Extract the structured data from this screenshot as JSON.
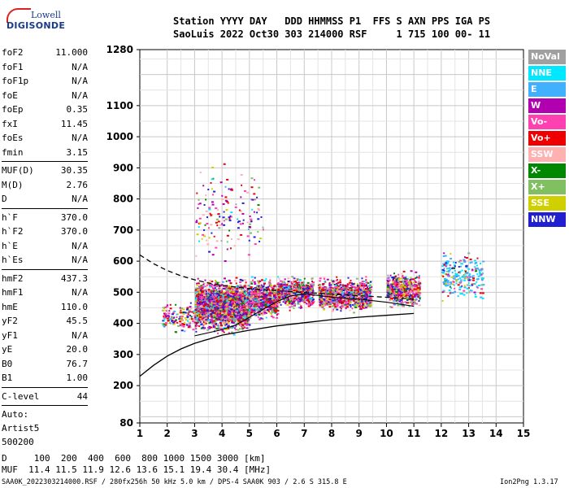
{
  "logo": {
    "line1": "Lowell",
    "line2": "DIGISONDE"
  },
  "header": {
    "line1": "Station YYYY DAY   DDD HHMMSS P1  FFS S AXN PPS IGA PS",
    "line2": "SaoLuis 2022 Oct30 303 214000 RSF     1 715 100 00- 11"
  },
  "params": {
    "group1": [
      {
        "label": "foF2",
        "value": "11.000"
      },
      {
        "label": "foF1",
        "value": "N/A"
      },
      {
        "label": "foF1p",
        "value": "N/A"
      },
      {
        "label": "foE",
        "value": "N/A"
      },
      {
        "label": "foEp",
        "value": "0.35"
      },
      {
        "label": "fxI",
        "value": "11.45"
      },
      {
        "label": "foEs",
        "value": "N/A"
      },
      {
        "label": "fmin",
        "value": "3.15"
      }
    ],
    "group2": [
      {
        "label": "MUF(D)",
        "value": "30.35"
      },
      {
        "label": "M(D)",
        "value": "2.76"
      },
      {
        "label": "D",
        "value": "N/A"
      }
    ],
    "group3": [
      {
        "label": "h`F",
        "value": "370.0"
      },
      {
        "label": "h`F2",
        "value": "370.0"
      },
      {
        "label": "h`E",
        "value": "N/A"
      },
      {
        "label": "h`Es",
        "value": "N/A"
      }
    ],
    "group4": [
      {
        "label": "hmF2",
        "value": "437.3"
      },
      {
        "label": "hmF1",
        "value": "N/A"
      },
      {
        "label": "hmE",
        "value": "110.0"
      },
      {
        "label": "yF2",
        "value": "45.5"
      },
      {
        "label": "yF1",
        "value": "N/A"
      },
      {
        "label": "yE",
        "value": "20.0"
      },
      {
        "label": "B0",
        "value": "76.7"
      },
      {
        "label": "B1",
        "value": "1.00"
      }
    ],
    "clevel": {
      "label": "C-level",
      "value": "44"
    },
    "auto": [
      "Auto:",
      "Artist5",
      "500200"
    ]
  },
  "legend": [
    {
      "label": "NoVal",
      "color": "#a0a0a0"
    },
    {
      "label": "NNE",
      "color": "#00e8ff"
    },
    {
      "label": "E",
      "color": "#40b0ff"
    },
    {
      "label": "W",
      "color": "#b000b0"
    },
    {
      "label": "Vo-",
      "color": "#ff40b0"
    },
    {
      "label": "Vo+",
      "color": "#ee0000"
    },
    {
      "label": "SSW",
      "color": "#ffb0b0"
    },
    {
      "label": "X-",
      "color": "#008800"
    },
    {
      "label": "X+",
      "color": "#80c060"
    },
    {
      "label": "SSE",
      "color": "#d0d000"
    },
    {
      "label": "NNW",
      "color": "#2020d0"
    }
  ],
  "footer": {
    "line1": "D     100  200  400  600  800 1000 1500 3000 [km]",
    "line2": "MUF  11.4 11.5 11.9 12.6 13.6 15.1 19.4 30.4 [MHz]",
    "line3": "SAA0K_2022303214000.RSF / 280fx256h 50 kHz 5.0 km / DPS-4 SAA0K 903 / 2.6 S 315.8 E",
    "version": "Ion2Png 1.3.17"
  },
  "chart_data": {
    "type": "scatter",
    "xlim": [
      1,
      15
    ],
    "ylim": [
      80,
      1280
    ],
    "xticks": [
      "1",
      "2",
      "3",
      "4",
      "5",
      "6",
      "7",
      "8",
      "9",
      "10",
      "11",
      "12",
      "13",
      "14",
      "15"
    ],
    "yticks": [
      "80",
      "200",
      "300",
      "400",
      "500",
      "600",
      "700",
      "800",
      "900",
      "1000",
      "1100",
      "1280"
    ],
    "grid": true,
    "clusters": [
      {
        "x": [
          3.0,
          5.0
        ],
        "y": [
          360,
          560
        ],
        "count": 2400,
        "note": "dense echoes"
      },
      {
        "x": [
          5.0,
          6.0
        ],
        "y": [
          400,
          560
        ],
        "count": 700
      },
      {
        "x": [
          6.0,
          7.3
        ],
        "y": [
          440,
          560
        ],
        "count": 700
      },
      {
        "x": [
          7.5,
          9.4
        ],
        "y": [
          430,
          560
        ],
        "count": 1000
      },
      {
        "x": [
          10.0,
          11.2
        ],
        "y": [
          440,
          580
        ],
        "count": 600
      },
      {
        "x": [
          12.0,
          13.5
        ],
        "y": [
          460,
          650
        ],
        "count": 250
      },
      {
        "x": [
          1.8,
          3.0
        ],
        "y": [
          360,
          480
        ],
        "count": 150
      },
      {
        "x": [
          3.0,
          5.5
        ],
        "y": [
          560,
          960
        ],
        "count": 160
      }
    ],
    "profile_curve": {
      "x": [
        1.0,
        1.5,
        2.0,
        2.5,
        3.0,
        4.0,
        5.0,
        6.0,
        7.0,
        8.0,
        9.0,
        10.0,
        11.0
      ],
      "y": [
        230,
        265,
        295,
        318,
        336,
        362,
        378,
        392,
        402,
        412,
        420,
        426,
        432
      ]
    },
    "trace_curve": {
      "x": [
        3.0,
        3.5,
        4.0,
        4.5,
        5.0,
        5.5,
        6.0,
        6.5,
        7.0,
        7.5,
        8.0,
        9.0,
        10.0,
        10.5,
        11.0
      ],
      "y": [
        360,
        370,
        380,
        395,
        420,
        445,
        470,
        488,
        495,
        490,
        484,
        478,
        468,
        462,
        455
      ]
    },
    "dashed_curve": {
      "x": [
        1.0,
        1.5,
        2.0,
        2.5,
        3.0,
        3.5,
        4.0,
        5.0,
        6.0,
        7.0,
        8.0,
        9.0,
        10.0,
        11.0
      ],
      "y": [
        620,
        592,
        570,
        553,
        540,
        530,
        522,
        512,
        505,
        499,
        494,
        489,
        484,
        478
      ]
    }
  }
}
